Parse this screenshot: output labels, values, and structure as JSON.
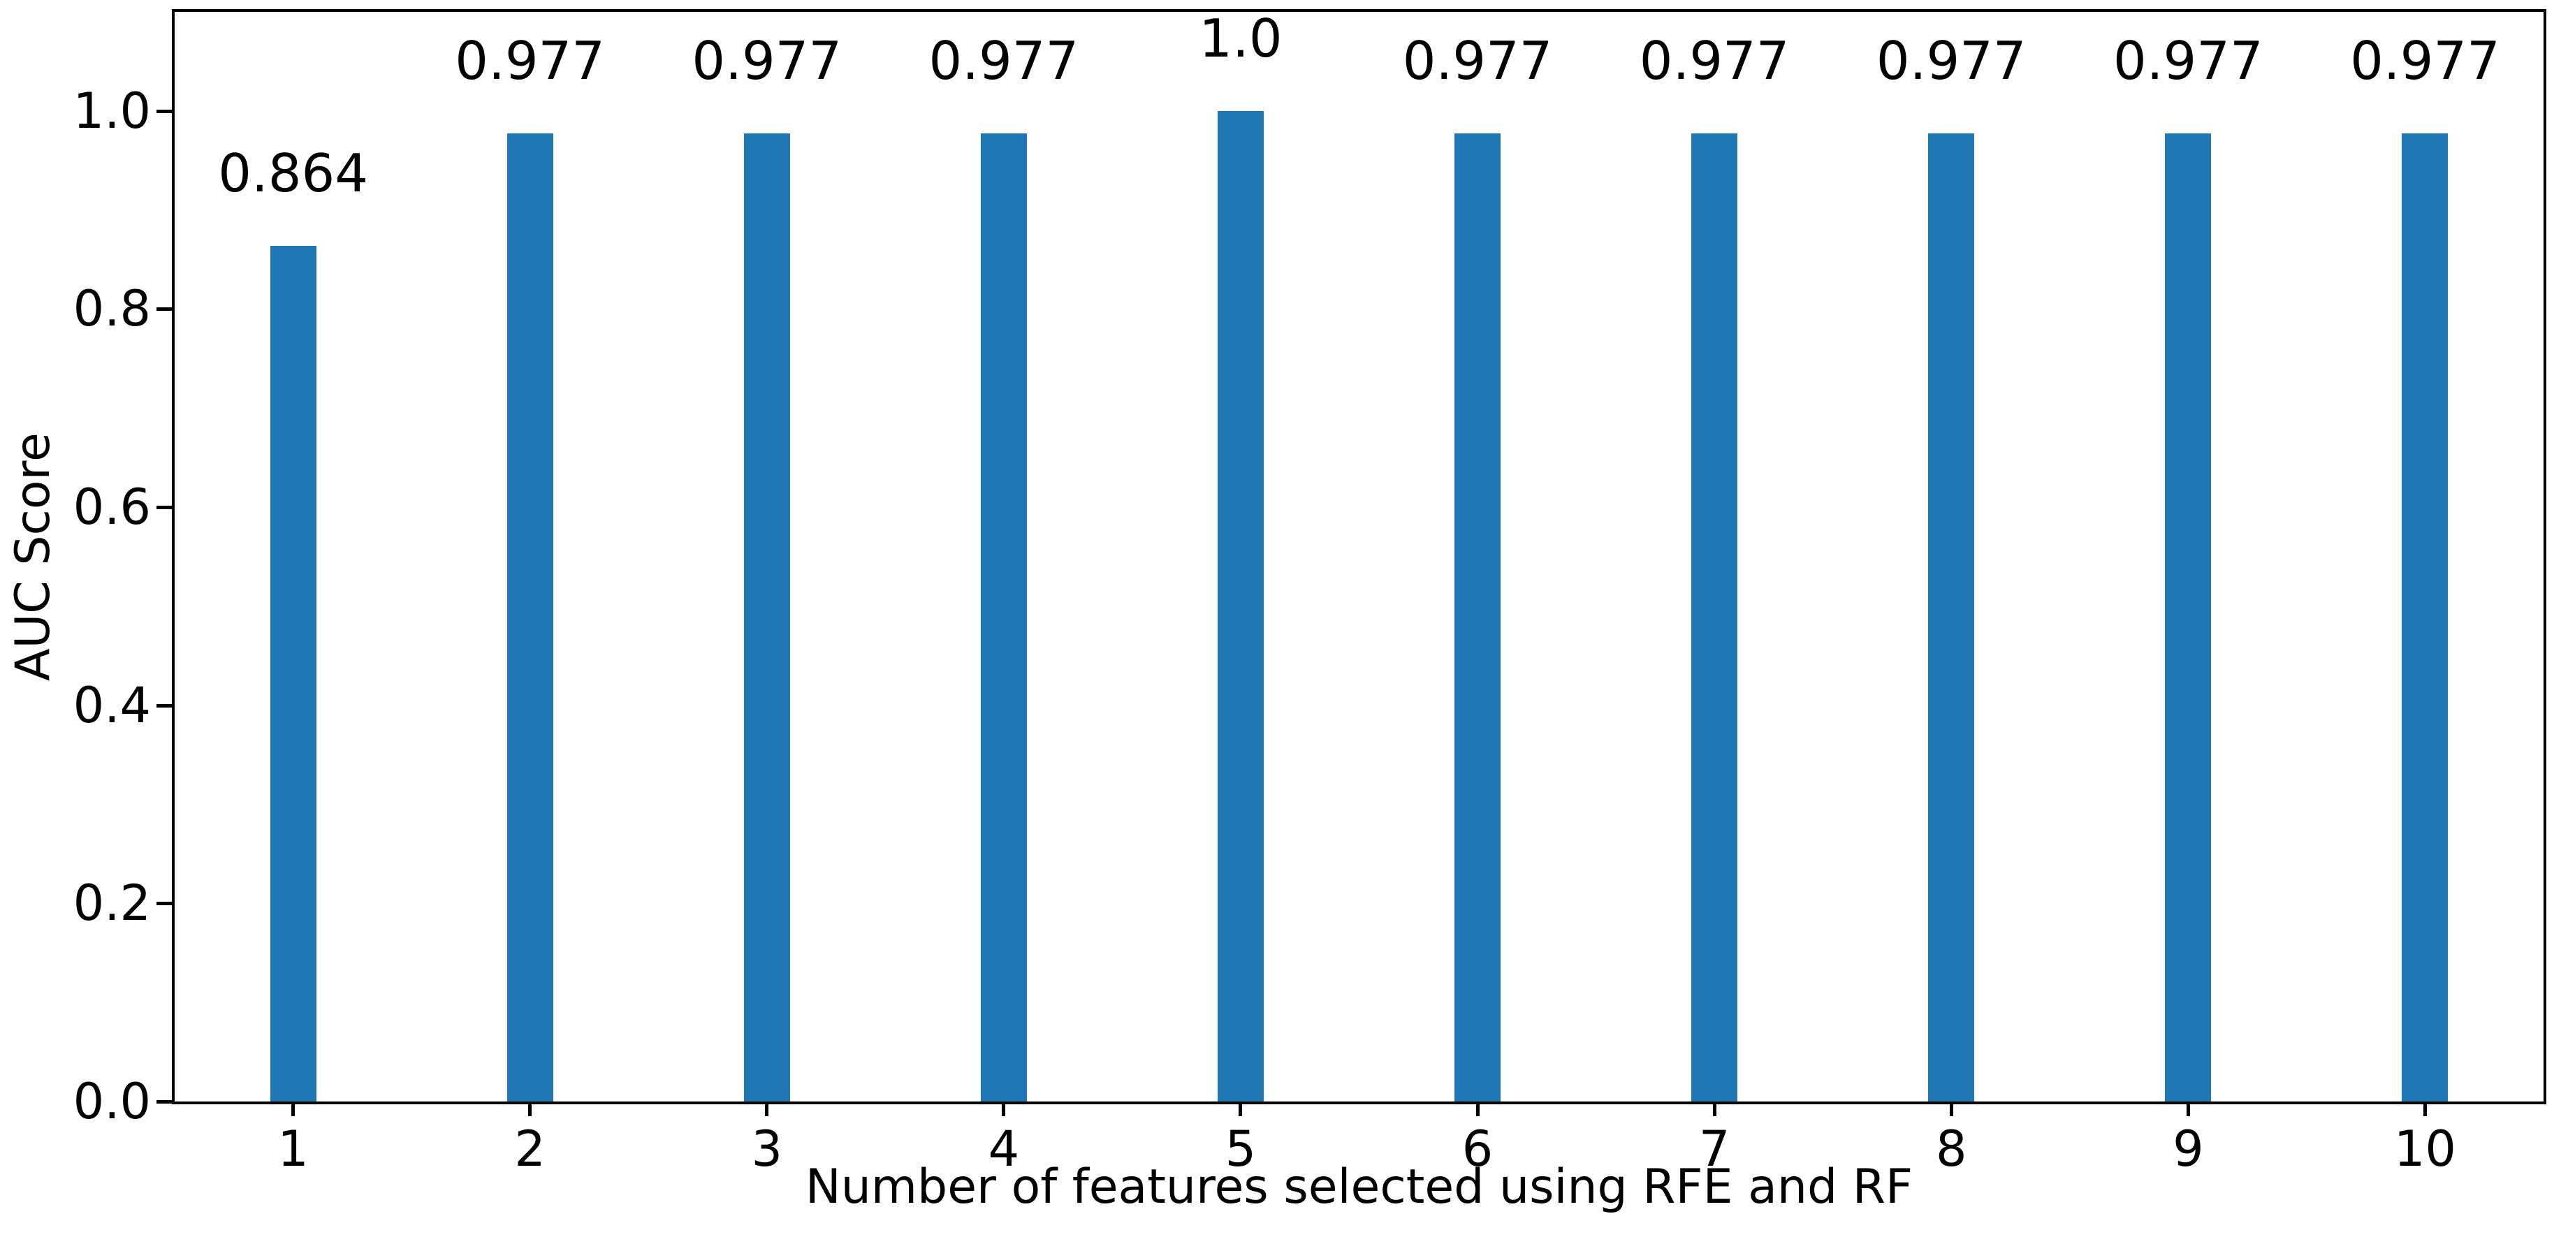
{
  "chart_data": {
    "type": "bar",
    "title": "",
    "xlabel": "Number of features selected using RFE and RF",
    "ylabel": "AUC Score",
    "categories": [
      "1",
      "2",
      "3",
      "4",
      "5",
      "6",
      "7",
      "8",
      "9",
      "10"
    ],
    "values": [
      0.864,
      0.977,
      0.977,
      0.977,
      1.0,
      0.977,
      0.977,
      0.977,
      0.977,
      0.977
    ],
    "bar_labels": [
      "0.864",
      "0.977",
      "0.977",
      "0.977",
      "1.0",
      "0.977",
      "0.977",
      "0.977",
      "0.977",
      "0.977"
    ],
    "yticks": [
      0.0,
      0.2,
      0.4,
      0.6,
      0.8,
      1.0
    ],
    "ytick_labels": [
      "0.0",
      "0.2",
      "0.4",
      "0.6",
      "0.8",
      "1.0"
    ],
    "ylim": [
      0,
      1.1
    ],
    "bar_color": "#1f77b4",
    "spine_color": "#000000",
    "grid": false,
    "legend": "none"
  }
}
